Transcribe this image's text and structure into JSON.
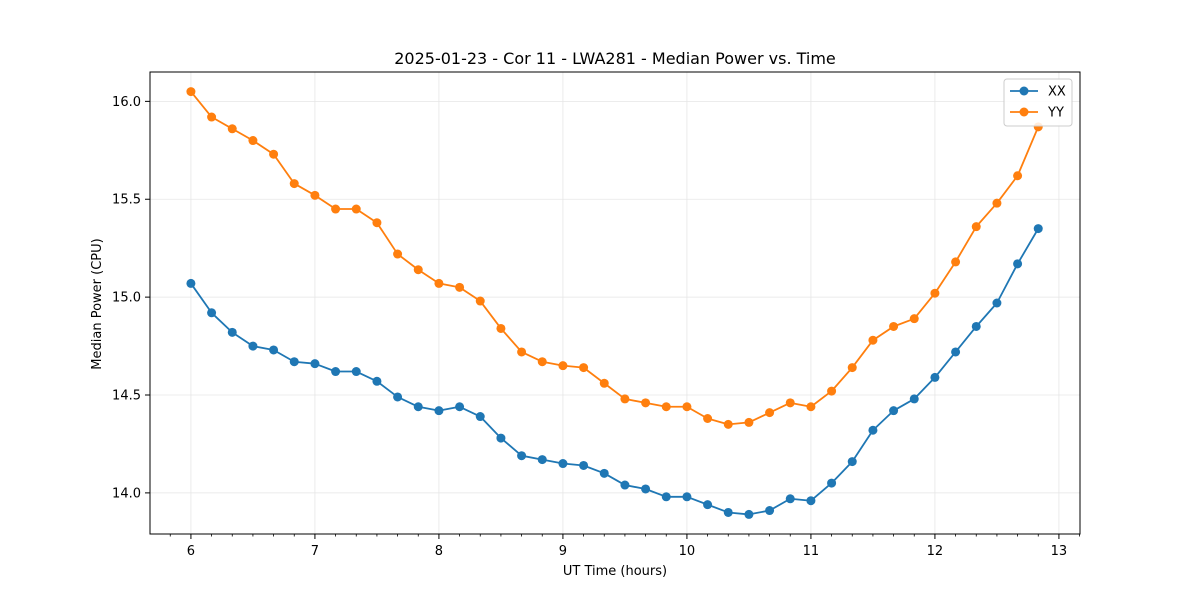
{
  "chart_data": {
    "type": "line",
    "title": "2025-01-23 - Cor 11 - LWA281 - Median Power vs. Time",
    "xlabel": "UT Time (hours)",
    "ylabel": "Median Power (CPU)",
    "xlim": [
      5.67,
      13.17
    ],
    "ylim": [
      13.79,
      16.15
    ],
    "xticks": [
      6,
      7,
      8,
      9,
      10,
      11,
      12,
      13
    ],
    "xtick_labels": [
      "6",
      "7",
      "8",
      "9",
      "10",
      "11",
      "12",
      "13"
    ],
    "yticks": [
      14.0,
      14.5,
      15.0,
      15.5,
      16.0
    ],
    "ytick_labels": [
      "14.0",
      "14.5",
      "15.0",
      "15.5",
      "16.0"
    ],
    "grid": true,
    "legend_position": "top-right",
    "x": [
      6.0,
      6.1667,
      6.3333,
      6.5,
      6.6667,
      6.8333,
      7.0,
      7.1667,
      7.3333,
      7.5,
      7.6667,
      7.8333,
      8.0,
      8.1667,
      8.3333,
      8.5,
      8.6667,
      8.8333,
      9.0,
      9.1667,
      9.3333,
      9.5,
      9.6667,
      9.8333,
      10.0,
      10.1667,
      10.3333,
      10.5,
      10.6667,
      10.8333,
      11.0,
      11.1667,
      11.3333,
      11.5,
      11.6667,
      11.8333,
      12.0,
      12.1667,
      12.3333,
      12.5,
      12.6667,
      12.8333
    ],
    "series": [
      {
        "name": "XX",
        "color": "#1f77b4",
        "values": [
          15.07,
          14.92,
          14.82,
          14.75,
          14.73,
          14.67,
          14.66,
          14.62,
          14.62,
          14.57,
          14.49,
          14.44,
          14.42,
          14.44,
          14.39,
          14.28,
          14.19,
          14.17,
          14.15,
          14.14,
          14.1,
          14.04,
          14.02,
          13.98,
          13.98,
          13.94,
          13.9,
          13.89,
          13.91,
          13.97,
          13.96,
          14.05,
          14.16,
          14.32,
          14.42,
          14.48,
          14.59,
          14.72,
          14.85,
          14.97,
          15.17,
          15.35
        ]
      },
      {
        "name": "YY",
        "color": "#ff7f0e",
        "values": [
          16.05,
          15.92,
          15.86,
          15.8,
          15.73,
          15.58,
          15.52,
          15.45,
          15.45,
          15.38,
          15.22,
          15.14,
          15.07,
          15.05,
          14.98,
          14.84,
          14.72,
          14.67,
          14.65,
          14.64,
          14.56,
          14.48,
          14.46,
          14.44,
          14.44,
          14.38,
          14.35,
          14.36,
          14.41,
          14.46,
          14.44,
          14.52,
          14.64,
          14.78,
          14.85,
          14.89,
          15.02,
          15.18,
          15.36,
          15.48,
          15.62,
          15.87
        ]
      }
    ]
  }
}
